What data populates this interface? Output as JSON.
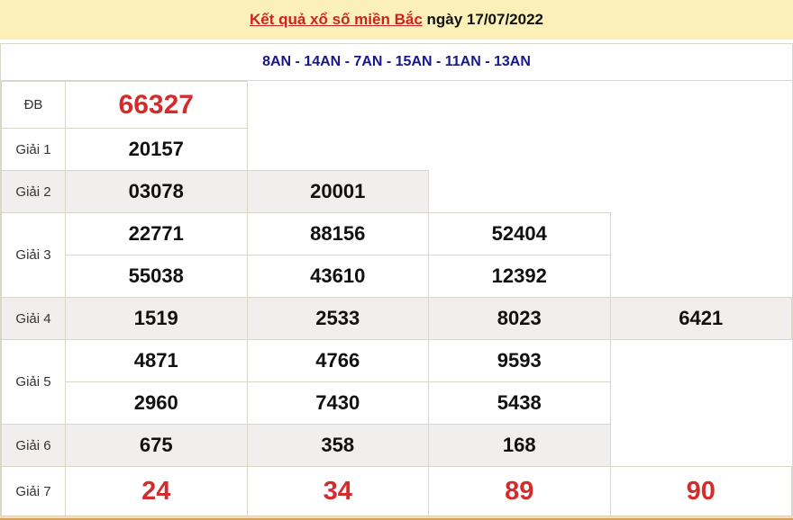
{
  "header": {
    "title": "Kết quả xổ số miền Bắc",
    "date_text": " ngày 17/07/2022"
  },
  "subheader": {
    "codes": "8AN - 14AN - 7AN - 15AN - 11AN - 13AN"
  },
  "table": {
    "rows": [
      {
        "label": "ĐB",
        "style": "special",
        "lines": [
          [
            "66327"
          ]
        ]
      },
      {
        "label": "Giải 1",
        "style": "normal",
        "lines": [
          [
            "20157"
          ]
        ]
      },
      {
        "label": "Giải 2",
        "style": "shaded",
        "lines": [
          [
            "03078",
            "20001"
          ]
        ]
      },
      {
        "label": "Giải 3",
        "style": "normal",
        "lines": [
          [
            "22771",
            "88156",
            "52404"
          ],
          [
            "55038",
            "43610",
            "12392"
          ]
        ]
      },
      {
        "label": "Giải 4",
        "style": "shaded",
        "lines": [
          [
            "1519",
            "2533",
            "8023",
            "6421"
          ]
        ]
      },
      {
        "label": "Giải 5",
        "style": "normal",
        "lines": [
          [
            "4871",
            "4766",
            "9593"
          ],
          [
            "2960",
            "7430",
            "5438"
          ]
        ]
      },
      {
        "label": "Giải 6",
        "style": "shaded",
        "lines": [
          [
            "675",
            "358",
            "168"
          ]
        ]
      },
      {
        "label": "Giải 7",
        "style": "seventh",
        "lines": [
          [
            "24",
            "34",
            "89",
            "90"
          ]
        ]
      }
    ]
  },
  "colors": {
    "header_bg": "#FBF1B8",
    "title_red": "#CC2222",
    "number_red": "#D32C2C",
    "navy_blue": "#17178C",
    "shaded_row_bg": "#F0EFED",
    "border": "#DAD7CA",
    "bottom_line_light": "#F2DFB8",
    "bottom_line_dark": "#D9A05C"
  }
}
